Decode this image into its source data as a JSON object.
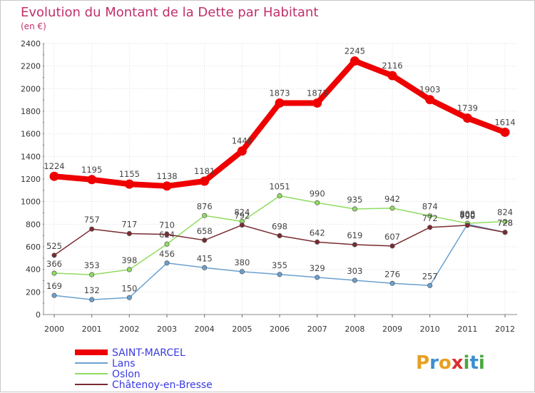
{
  "header": {
    "title": "Evolution du Montant de la Dette par Habitant",
    "subtitle": "(en €)"
  },
  "logo": {
    "letters": [
      "P",
      "r",
      "o",
      "x",
      "i",
      "t",
      "i"
    ],
    "colors": [
      "#e8a020",
      "#3a8fd0",
      "#e8a020",
      "#d83030",
      "#4aa840",
      "#3a8fd0",
      "#4aa840"
    ]
  },
  "chart_data": {
    "type": "line",
    "x": [
      "2000",
      "2001",
      "2002",
      "2003",
      "2004",
      "2005",
      "2006",
      "2007",
      "2008",
      "2009",
      "2010",
      "2011",
      "2012"
    ],
    "yticks": [
      "0",
      "200",
      "400",
      "600",
      "800",
      "1000",
      "1200",
      "1400",
      "1600",
      "1800",
      "2000",
      "2200",
      "2400"
    ],
    "ylim": [
      0,
      2400
    ],
    "grid": true,
    "legend_position": "bottom-left",
    "series": [
      {
        "name": "SAINT-MARCEL",
        "color": "#ee0000",
        "values": [
          1224,
          1195,
          1155,
          1138,
          1181,
          1448,
          1873,
          1873,
          2245,
          2116,
          1903,
          1739,
          1614
        ],
        "labels": [
          "1224",
          "1195",
          "1155",
          "1138",
          "1181",
          "1448",
          "1873",
          "1873",
          "2245",
          "2116",
          "1903",
          "1739",
          "1614"
        ]
      },
      {
        "name": "Lans",
        "color": "#6aa0d0",
        "values": [
          169,
          132,
          150,
          456,
          415,
          380,
          355,
          329,
          303,
          276,
          257,
          800,
          728
        ],
        "labels": [
          "169",
          "132",
          "150",
          "456",
          "415",
          "380",
          "355",
          "329",
          "303",
          "276",
          "257",
          "800",
          "728"
        ]
      },
      {
        "name": "Oslon",
        "color": "#90dc60",
        "values": [
          366,
          353,
          398,
          624,
          876,
          824,
          1051,
          990,
          935,
          942,
          874,
          808,
          824
        ],
        "labels": [
          "366",
          "353",
          "398",
          "624",
          "876",
          "824",
          "1051",
          "990",
          "935",
          "942",
          "874",
          "808",
          "824"
        ]
      },
      {
        "name": "Châtenoy-en-Bresse",
        "color": "#7a2a30",
        "values": [
          525,
          757,
          717,
          710,
          658,
          792,
          698,
          642,
          619,
          607,
          772,
          790,
          728
        ],
        "labels": [
          "525",
          "757",
          "717",
          "710",
          "658",
          "792",
          "698",
          "642",
          "619",
          "607",
          "772",
          "790",
          "728"
        ]
      }
    ]
  }
}
